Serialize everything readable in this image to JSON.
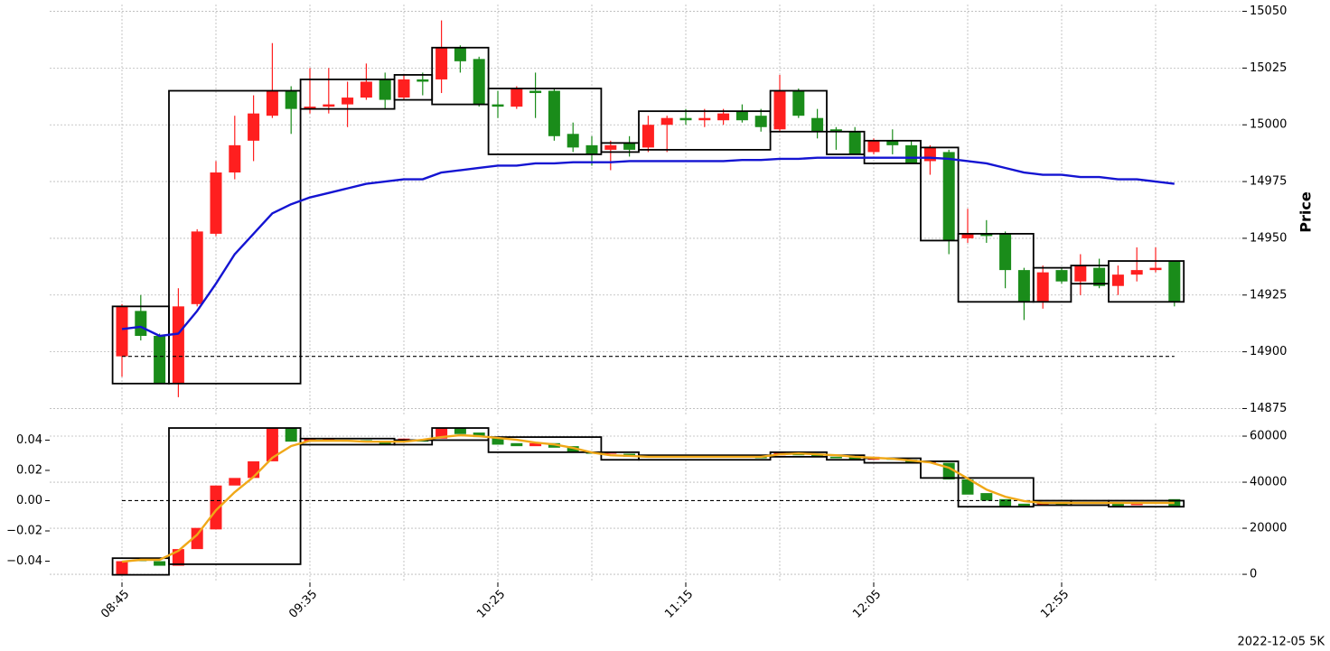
{
  "chart_data": [
    {
      "type": "candlestick",
      "ylabel": "Price",
      "up_color": "#ff1f1f",
      "down_color": "#1a8c1a",
      "ylim": [
        14872,
        15053
      ],
      "yticks": [
        14875,
        14900,
        14925,
        14950,
        14975,
        15000,
        15025,
        15050
      ],
      "grid": true,
      "ohlc": [
        [
          14898,
          14921,
          14889,
          14920
        ],
        [
          14918,
          14925,
          14905,
          14907
        ],
        [
          14907,
          14908,
          14886,
          14886
        ],
        [
          14886,
          14928,
          14880,
          14920
        ],
        [
          14921,
          14954,
          14920,
          14953
        ],
        [
          14952,
          14984,
          14951,
          14979
        ],
        [
          14979,
          15004,
          14976,
          14991
        ],
        [
          14993,
          15013,
          14984,
          15005
        ],
        [
          15004,
          15036,
          15003,
          15015
        ],
        [
          15015,
          15017,
          14996,
          15007
        ],
        [
          15007,
          15025,
          15005,
          15008
        ],
        [
          15008,
          15025,
          15005,
          15009
        ],
        [
          15009,
          15019,
          14999,
          15012
        ],
        [
          15012,
          15027,
          15011,
          15019
        ],
        [
          15020,
          15023,
          15007,
          15011
        ],
        [
          15012,
          15022,
          15011,
          15020
        ],
        [
          15020,
          15023,
          15013,
          15019
        ],
        [
          15020,
          15046,
          15014,
          15034
        ],
        [
          15034,
          15035,
          15023,
          15028
        ],
        [
          15029,
          15030,
          15008,
          15009
        ],
        [
          15009,
          15015,
          15003,
          15008
        ],
        [
          15008,
          15017,
          15007,
          15016
        ],
        [
          15015,
          15023,
          15003,
          15014
        ],
        [
          15015,
          15016,
          14993,
          14995
        ],
        [
          14996,
          15001,
          14988,
          14990
        ],
        [
          14991,
          14995,
          14982,
          14987
        ],
        [
          14989,
          14993,
          14980,
          14991
        ],
        [
          14992,
          14995,
          14986,
          14989
        ],
        [
          14990,
          15004,
          14988,
          15000
        ],
        [
          15000,
          15004,
          14988,
          15003
        ],
        [
          15003,
          15007,
          15000,
          15002
        ],
        [
          15002,
          15007,
          14999,
          15003
        ],
        [
          15002,
          15007,
          15000,
          15005
        ],
        [
          15006,
          15009,
          15001,
          15002
        ],
        [
          15004,
          15007,
          14997,
          14999
        ],
        [
          14998,
          15022,
          14997,
          15015
        ],
        [
          15015,
          15016,
          15003,
          15004
        ],
        [
          15003,
          15007,
          14994,
          14997
        ],
        [
          14998,
          14999,
          14989,
          14997
        ],
        [
          14997,
          14999,
          14987,
          14987
        ],
        [
          14988,
          14994,
          14987,
          14993
        ],
        [
          14993,
          14998,
          14987,
          14991
        ],
        [
          14991,
          14993,
          14983,
          14983
        ],
        [
          14984,
          14991,
          14978,
          14990
        ],
        [
          14988,
          14989,
          14943,
          14949
        ],
        [
          14950,
          14963,
          14948,
          14952
        ],
        [
          14952,
          14958,
          14948,
          14951
        ],
        [
          14952,
          14953,
          14928,
          14936
        ],
        [
          14936,
          14937,
          14914,
          14922
        ],
        [
          14922,
          14938,
          14919,
          14935
        ],
        [
          14936,
          14937,
          14930,
          14931
        ],
        [
          14931,
          14943,
          14925,
          14938
        ],
        [
          14937,
          14941,
          14928,
          14929
        ],
        [
          14929,
          14938,
          14925,
          14934
        ],
        [
          14934,
          14946,
          14931,
          14936
        ],
        [
          14936,
          14946,
          14935,
          14937
        ],
        [
          14940,
          14940,
          14920,
          14922
        ]
      ],
      "lines": [
        {
          "color": "#1414d2",
          "values": [
            14910,
            14911,
            14907,
            14908,
            14918,
            14930,
            14943,
            14952,
            14961,
            14965,
            14968,
            14970,
            14972,
            14974,
            14975,
            14976,
            14976,
            14979,
            14980,
            14981,
            14982,
            14982,
            14983,
            14983,
            14983.5,
            14983.5,
            14983.5,
            14984,
            14984,
            14984,
            14984,
            14984,
            14984,
            14984.5,
            14984.5,
            14985,
            14985,
            14985.5,
            14985.5,
            14985.5,
            14985.5,
            14985.5,
            14985.5,
            14985.5,
            14985,
            14984,
            14983,
            14981,
            14979,
            14978,
            14978,
            14977,
            14977,
            14976,
            14976,
            14975,
            14974
          ]
        }
      ],
      "boxes": [
        [
          0,
          2,
          14920,
          14886
        ],
        [
          3,
          9,
          15015,
          14886
        ],
        [
          10,
          14,
          15020,
          15007
        ],
        [
          15,
          16,
          15022,
          15011
        ],
        [
          17,
          19,
          15034,
          15009
        ],
        [
          20,
          25,
          15016,
          14987
        ],
        [
          26,
          27,
          14992,
          14988
        ],
        [
          28,
          34,
          15006,
          14989
        ],
        [
          35,
          37,
          15015,
          14997
        ],
        [
          38,
          39,
          14997,
          14987
        ],
        [
          40,
          42,
          14993,
          14983
        ],
        [
          43,
          44,
          14990,
          14949
        ],
        [
          45,
          48,
          14952,
          14922
        ],
        [
          49,
          50,
          14937,
          14922
        ],
        [
          51,
          52,
          14938,
          14930
        ],
        [
          53,
          56,
          14940,
          14922
        ]
      ],
      "reference": 14898
    },
    {
      "type": "candlestick",
      "up_color": "#ff1f1f",
      "down_color": "#1a8c1a",
      "categories": [
        "08:45",
        null,
        null,
        null,
        null,
        null,
        null,
        null,
        null,
        null,
        "09:35",
        null,
        null,
        null,
        null,
        null,
        null,
        null,
        null,
        null,
        "10:25",
        null,
        null,
        null,
        null,
        null,
        null,
        null,
        null,
        null,
        "11:15",
        null,
        null,
        null,
        null,
        null,
        null,
        null,
        null,
        null,
        "12:05",
        null,
        null,
        null,
        null,
        null,
        null,
        null,
        null,
        null,
        "12:55",
        null,
        null,
        null,
        null,
        null,
        null
      ],
      "ylim": [
        -0.054,
        0.051
      ],
      "yticks": [
        {
          "value": -0.04,
          "label": "−0.04"
        },
        {
          "value": -0.02,
          "label": "−0.02"
        },
        {
          "value": 0,
          "label": "0.00"
        },
        {
          "value": 0.02,
          "label": "0.02"
        },
        {
          "value": 0.04,
          "label": "0.04"
        }
      ],
      "y2lim": [
        -3500,
        65500
      ],
      "y2ticks": [
        0,
        20000,
        40000,
        60000
      ],
      "grid": true,
      "ohlc": [
        [
          -0.049,
          -0.04
        ],
        [
          -0.039,
          -0.04
        ],
        [
          -0.04,
          -0.043
        ],
        [
          -0.043,
          -0.032
        ],
        [
          -0.032,
          -0.018
        ],
        [
          -0.019,
          0.01
        ],
        [
          0.01,
          0.015
        ],
        [
          0.015,
          0.026
        ],
        [
          0.026,
          0.048
        ],
        [
          0.048,
          0.039
        ],
        [
          0.039,
          0.041
        ],
        [
          0.04,
          0.041
        ],
        [
          0.04,
          0.039
        ],
        [
          0.04,
          0.039
        ],
        [
          0.039,
          0.037
        ],
        [
          0.039,
          0.041
        ],
        [
          0.04,
          0.039
        ],
        [
          0.041,
          0.048
        ],
        [
          0.048,
          0.044
        ],
        [
          0.045,
          0.042
        ],
        [
          0.042,
          0.037
        ],
        [
          0.038,
          0.036
        ],
        [
          0.036,
          0.038
        ],
        [
          0.038,
          0.035
        ],
        [
          0.036,
          0.032
        ],
        [
          0.032,
          0.031
        ],
        [
          0.031,
          0.032
        ],
        [
          0.031,
          0.029
        ],
        [
          0.029,
          0.03
        ],
        [
          0.029,
          0.03
        ],
        [
          0.03,
          0.029
        ],
        [
          0.029,
          0.03
        ],
        [
          0.029,
          0.03
        ],
        [
          0.03,
          0.029
        ],
        [
          0.03,
          0.028
        ],
        [
          0.03,
          0.032
        ],
        [
          0.032,
          0.03
        ],
        [
          0.031,
          0.029
        ],
        [
          0.029,
          0.028
        ],
        [
          0.029,
          0.027
        ],
        [
          0.027,
          0.029
        ],
        [
          0.028,
          0.027
        ],
        [
          0.027,
          0.025
        ],
        [
          0.025,
          0.026
        ],
        [
          0.025,
          0.014
        ],
        [
          0.014,
          0.004
        ],
        [
          0.005,
          0.0
        ],
        [
          0.001,
          -0.004
        ],
        [
          -0.002,
          -0.004
        ],
        [
          -0.003,
          -0.001
        ],
        [
          -0.001,
          -0.003
        ],
        [
          -0.002,
          -0.001
        ],
        [
          -0.001,
          -0.002
        ],
        [
          -0.001,
          -0.004
        ],
        [
          -0.003,
          -0.002
        ],
        [
          -0.002,
          -0.001
        ],
        [
          0.001,
          -0.004
        ]
      ],
      "lines": [
        {
          "color": "#f0a818",
          "axis": "y2",
          "values": [
            5500,
            6300,
            6300,
            10200,
            17200,
            27800,
            35700,
            42300,
            50600,
            55700,
            58000,
            58000,
            58000,
            57600,
            57600,
            57600,
            58400,
            59600,
            60400,
            60000,
            59200,
            58400,
            57200,
            56400,
            54900,
            52900,
            51700,
            51400,
            51000,
            51000,
            51000,
            51000,
            51000,
            51000,
            51000,
            52100,
            52500,
            52100,
            51700,
            51000,
            50600,
            50200,
            49400,
            48600,
            46300,
            41600,
            36800,
            33700,
            31800,
            31000,
            31000,
            31000,
            31000,
            31000,
            31000,
            31000,
            31000
          ]
        }
      ],
      "boxes": [
        [
          0,
          2,
          -0.038,
          -0.049
        ],
        [
          3,
          9,
          0.048,
          -0.042
        ],
        [
          10,
          14,
          0.041,
          0.037
        ],
        [
          15,
          16,
          0.04,
          0.037
        ],
        [
          17,
          19,
          0.048,
          0.04
        ],
        [
          20,
          25,
          0.042,
          0.032
        ],
        [
          26,
          27,
          0.032,
          0.027
        ],
        [
          28,
          34,
          0.03,
          0.027
        ],
        [
          35,
          37,
          0.032,
          0.029
        ],
        [
          38,
          39,
          0.03,
          0.027
        ],
        [
          40,
          42,
          0.028,
          0.025
        ],
        [
          43,
          44,
          0.026,
          0.015
        ],
        [
          45,
          48,
          0.015,
          -0.004
        ],
        [
          49,
          50,
          0,
          -0.003
        ],
        [
          51,
          52,
          0,
          -0.003
        ],
        [
          53,
          56,
          0,
          -0.004
        ]
      ],
      "reference": 0
    }
  ],
  "footer": "2022-12-05 5K"
}
